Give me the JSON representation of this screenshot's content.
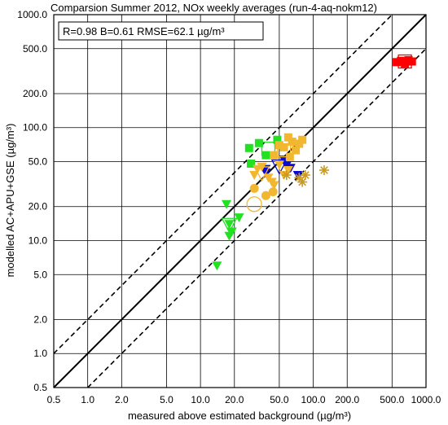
{
  "chart_data": {
    "type": "scatter",
    "title": "Comparsion Summer 2012, NOx weekly averages (run-4-aq-nokm12)",
    "stats": "R=0.98 B=0.61 RMSE=62.1 µg/m³",
    "xlabel": "measured above estimated background (µg/m³)",
    "ylabel": "modelled AC+APU+GSE (µg/m³)",
    "xscale": "log",
    "yscale": "log",
    "xlim": [
      0.5,
      1000
    ],
    "ylim": [
      0.5,
      1000
    ],
    "grid": true,
    "ticks": [
      0.5,
      1.0,
      2.0,
      5.0,
      10.0,
      20.0,
      50.0,
      100.0,
      200.0,
      500.0,
      1000.0
    ],
    "tick_labels": [
      "0.5",
      "1.0",
      "2.0",
      "5.0",
      "10.0",
      "20.0",
      "50.0",
      "100.0",
      "200.0",
      "500.0",
      "1000.0"
    ],
    "reference_lines": [
      {
        "name": "1:1",
        "factor": 1,
        "style": "solid"
      },
      {
        "name": "factor 2 upper",
        "factor": 2,
        "style": "dashed"
      },
      {
        "name": "factor 2 lower",
        "factor": 0.5,
        "style": "dashed"
      }
    ],
    "colors": {
      "green": "#22e022",
      "blue": "#0a0ad0",
      "orange": "#f2b731",
      "red": "#ff0000",
      "star": "#c99a1e"
    },
    "series": [
      {
        "marker": "square",
        "color": "green",
        "points": [
          [
            27,
            66
          ],
          [
            28,
            48
          ],
          [
            33,
            73
          ],
          [
            38,
            57
          ],
          [
            48,
            78
          ]
        ]
      },
      {
        "marker": "square-open",
        "color": "green",
        "points": [
          [
            40,
            65
          ]
        ]
      },
      {
        "marker": "triangle-down",
        "color": "green",
        "points": [
          [
            17,
            21
          ],
          [
            18,
            14
          ],
          [
            18,
            11
          ],
          [
            19,
            12
          ],
          [
            22,
            16
          ],
          [
            14,
            6
          ]
        ]
      },
      {
        "marker": "triangle-down-open",
        "color": "green",
        "points": [
          [
            18,
            14
          ]
        ]
      },
      {
        "marker": "triangle-down",
        "color": "blue",
        "points": [
          [
            38,
            43
          ],
          [
            38,
            40
          ],
          [
            55,
            52
          ],
          [
            58,
            46
          ],
          [
            63,
            44
          ],
          [
            73,
            38
          ]
        ]
      },
      {
        "marker": "triangle-down-open",
        "color": "blue",
        "points": [
          [
            50,
            46
          ]
        ]
      },
      {
        "marker": "square",
        "color": "orange",
        "points": [
          [
            45,
            57
          ],
          [
            50,
            70
          ],
          [
            55,
            67
          ],
          [
            60,
            82
          ],
          [
            65,
            75
          ],
          [
            70,
            63
          ],
          [
            75,
            72
          ],
          [
            80,
            78
          ],
          [
            62,
            55
          ]
        ]
      },
      {
        "marker": "square-open",
        "color": "orange",
        "points": [
          [
            55,
            63
          ]
        ]
      },
      {
        "marker": "triangle-down",
        "color": "orange",
        "points": [
          [
            30,
            38
          ],
          [
            32,
            43
          ],
          [
            35,
            45
          ],
          [
            40,
            36
          ],
          [
            43,
            33
          ],
          [
            45,
            31
          ],
          [
            50,
            47
          ],
          [
            55,
            38
          ],
          [
            60,
            42
          ]
        ]
      },
      {
        "marker": "triangle-down-open",
        "color": "orange",
        "points": [
          [
            35,
            40
          ]
        ]
      },
      {
        "marker": "circle",
        "color": "orange",
        "points": [
          [
            30,
            29
          ],
          [
            38,
            25
          ],
          [
            44,
            27
          ]
        ]
      },
      {
        "marker": "circle-open",
        "color": "orange",
        "points": [
          [
            30,
            21
          ]
        ]
      },
      {
        "marker": "star",
        "color": "star",
        "points": [
          [
            58,
            38
          ],
          [
            75,
            36
          ],
          [
            80,
            33
          ],
          [
            85,
            38
          ],
          [
            125,
            42
          ]
        ]
      },
      {
        "marker": "square",
        "color": "red",
        "points": [
          [
            550,
            380
          ],
          [
            600,
            390
          ],
          [
            650,
            370
          ],
          [
            700,
            395
          ],
          [
            750,
            385
          ]
        ]
      },
      {
        "marker": "square-open",
        "color": "red",
        "points": [
          [
            650,
            385
          ]
        ]
      }
    ]
  }
}
